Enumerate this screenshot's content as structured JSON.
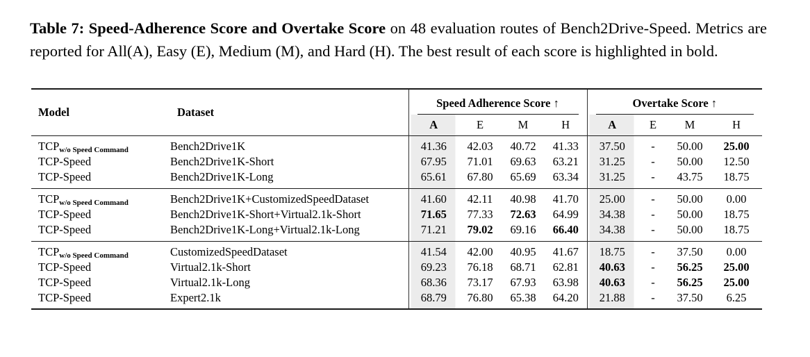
{
  "caption": {
    "bold": "Table 7: Speed-Adherence Score and Overtake Score",
    "text": " on 48 evaluation routes of Bench2Drive-Speed. Metrics are reported for All(A), Easy (E), Medium (M), and Hard (H). The best result of each score is highlighted in bold."
  },
  "table": {
    "colors": {
      "highlight": "#ececec",
      "rule": "#1a1a1a",
      "bar": "#2f2f2f"
    },
    "columns": {
      "model": "Model",
      "dataset": "Dataset"
    },
    "groups": [
      {
        "label": "Speed Adherence Score ↑",
        "subcols": [
          "A",
          "E",
          "M",
          "H"
        ]
      },
      {
        "label": "Overtake Score ↑",
        "subcols": [
          "A",
          "E",
          "M",
          "H"
        ]
      }
    ],
    "blocks": [
      {
        "rows": [
          {
            "model": {
              "name": "TCP",
              "sub": "w/o Speed Command"
            },
            "dataset": "Bench2Drive1K",
            "sas": [
              "41.36",
              "42.03",
              "40.72",
              "41.33"
            ],
            "sas_bold": [],
            "ot": [
              "37.50",
              "-",
              "50.00",
              "25.00"
            ],
            "ot_bold": [
              3
            ]
          },
          {
            "model": {
              "name": "TCP-Speed",
              "sub": ""
            },
            "dataset": "Bench2Drive1K-Short",
            "sas": [
              "67.95",
              "71.01",
              "69.63",
              "63.21"
            ],
            "sas_bold": [],
            "ot": [
              "31.25",
              "-",
              "50.00",
              "12.50"
            ],
            "ot_bold": []
          },
          {
            "model": {
              "name": "TCP-Speed",
              "sub": ""
            },
            "dataset": "Bench2Drive1K-Long",
            "sas": [
              "65.61",
              "67.80",
              "65.69",
              "63.34"
            ],
            "sas_bold": [],
            "ot": [
              "31.25",
              "-",
              "43.75",
              "18.75"
            ],
            "ot_bold": []
          }
        ]
      },
      {
        "rows": [
          {
            "model": {
              "name": "TCP",
              "sub": "w/o Speed Command"
            },
            "dataset": "Bench2Drive1K+CustomizedSpeedDataset",
            "sas": [
              "41.60",
              "42.11",
              "40.98",
              "41.70"
            ],
            "sas_bold": [],
            "ot": [
              "25.00",
              "-",
              "50.00",
              "0.00"
            ],
            "ot_bold": []
          },
          {
            "model": {
              "name": "TCP-Speed",
              "sub": ""
            },
            "dataset": "Bench2Drive1K-Short+Virtual2.1k-Short",
            "sas": [
              "71.65",
              "77.33",
              "72.63",
              "64.99"
            ],
            "sas_bold": [
              0,
              2
            ],
            "ot": [
              "34.38",
              "-",
              "50.00",
              "18.75"
            ],
            "ot_bold": []
          },
          {
            "model": {
              "name": "TCP-Speed",
              "sub": ""
            },
            "dataset": "Bench2Drive1K-Long+Virtual2.1k-Long",
            "sas": [
              "71.21",
              "79.02",
              "69.16",
              "66.40"
            ],
            "sas_bold": [
              1,
              3
            ],
            "ot": [
              "34.38",
              "-",
              "50.00",
              "18.75"
            ],
            "ot_bold": []
          }
        ]
      },
      {
        "rows": [
          {
            "model": {
              "name": "TCP",
              "sub": "w/o Speed Command"
            },
            "dataset": "CustomizedSpeedDataset",
            "sas": [
              "41.54",
              "42.00",
              "40.95",
              "41.67"
            ],
            "sas_bold": [],
            "ot": [
              "18.75",
              "-",
              "37.50",
              "0.00"
            ],
            "ot_bold": []
          },
          {
            "model": {
              "name": "TCP-Speed",
              "sub": ""
            },
            "dataset": "Virtual2.1k-Short",
            "sas": [
              "69.23",
              "76.18",
              "68.71",
              "62.81"
            ],
            "sas_bold": [],
            "ot": [
              "40.63",
              "-",
              "56.25",
              "25.00"
            ],
            "ot_bold": [
              0,
              2,
              3
            ]
          },
          {
            "model": {
              "name": "TCP-Speed",
              "sub": ""
            },
            "dataset": "Virtual2.1k-Long",
            "sas": [
              "68.36",
              "73.17",
              "67.93",
              "63.98"
            ],
            "sas_bold": [],
            "ot": [
              "40.63",
              "-",
              "56.25",
              "25.00"
            ],
            "ot_bold": [
              0,
              2,
              3
            ]
          },
          {
            "model": {
              "name": "TCP-Speed",
              "sub": ""
            },
            "dataset": "Expert2.1k",
            "sas": [
              "68.79",
              "76.80",
              "65.38",
              "64.20"
            ],
            "sas_bold": [],
            "ot": [
              "21.88",
              "-",
              "37.50",
              "6.25"
            ],
            "ot_bold": []
          }
        ]
      }
    ]
  }
}
